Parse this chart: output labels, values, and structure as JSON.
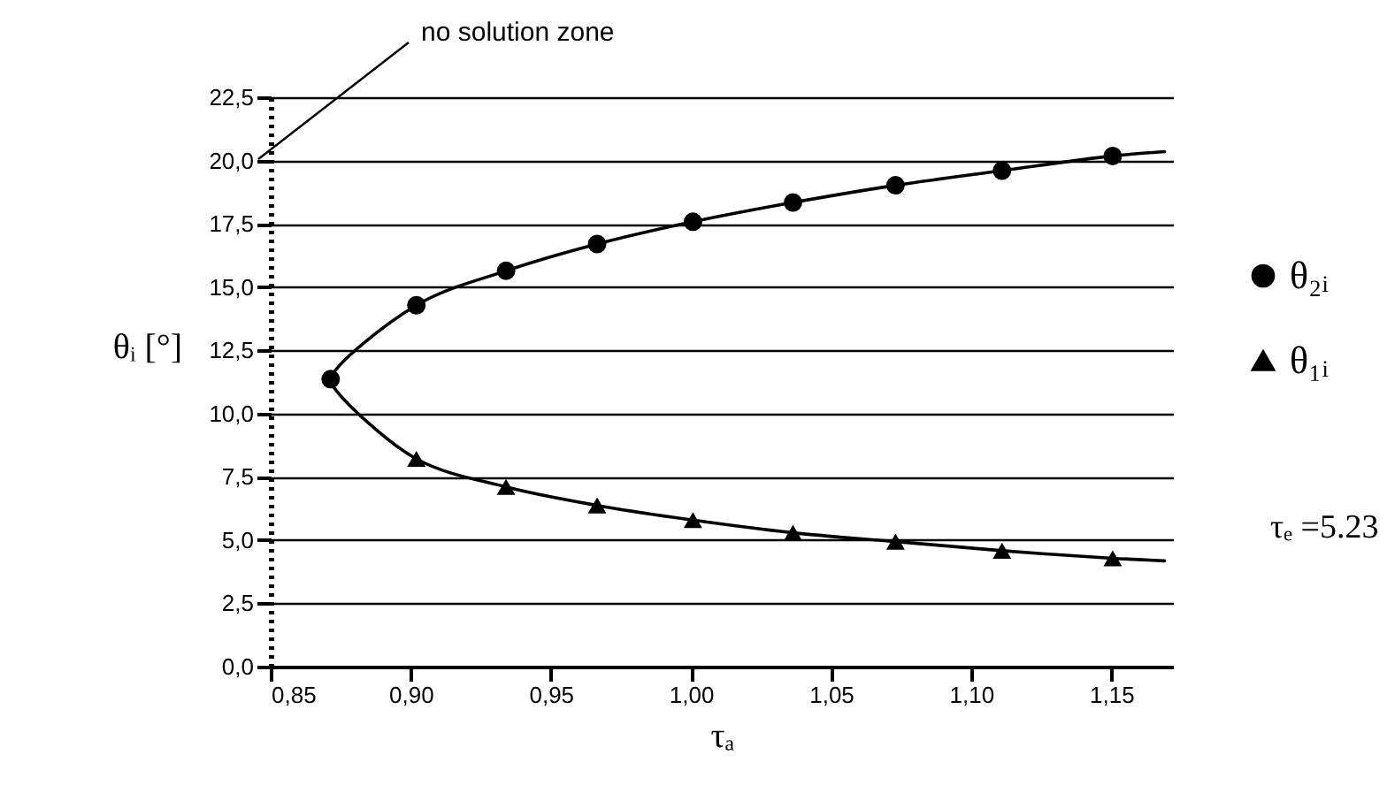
{
  "chart_data": {
    "type": "scatter",
    "xlabel": "τₐ",
    "ylabel": "θᵢ [°]",
    "xlim": [
      0.85,
      1.172
    ],
    "ylim": [
      0,
      22.5
    ],
    "xticks": [
      {
        "value": 0.85,
        "label": "0,85"
      },
      {
        "value": 0.9,
        "label": "0,90"
      },
      {
        "value": 0.95,
        "label": "0,95"
      },
      {
        "value": 1.0,
        "label": "1,00"
      },
      {
        "value": 1.05,
        "label": "1,05"
      },
      {
        "value": 1.1,
        "label": "1,10"
      },
      {
        "value": 1.15,
        "label": "1,15"
      }
    ],
    "yticks": [
      {
        "value": 0,
        "label": "0,0"
      },
      {
        "value": 2.5,
        "label": "2,5"
      },
      {
        "value": 5,
        "label": "5,0"
      },
      {
        "value": 7.5,
        "label": "7,5"
      },
      {
        "value": 10,
        "label": "10,0"
      },
      {
        "value": 12.5,
        "label": "12,5"
      },
      {
        "value": 15,
        "label": "15,0"
      },
      {
        "value": 17.5,
        "label": "17,5"
      },
      {
        "value": 20,
        "label": "20,0"
      },
      {
        "value": 22.5,
        "label": "22,5"
      }
    ],
    "grid": "y",
    "legend": "right",
    "series": [
      {
        "type": "line",
        "color": "#000000",
        "x": [
          1.169,
          1.1505,
          1.111,
          1.073,
          1.0364,
          1.0007,
          0.9665,
          0.934,
          0.902,
          0.8735,
          0.8714,
          0.902,
          0.934,
          0.9665,
          1.0007,
          1.0364,
          1.073,
          1.111,
          1.1505,
          1.169
        ],
        "values": [
          4.18,
          4.28,
          4.58,
          4.94,
          5.29,
          5.79,
          6.37,
          7.1,
          8.21,
          10.9,
          11.36,
          14.28,
          15.64,
          16.7,
          17.58,
          18.34,
          19.02,
          19.6,
          20.18,
          20.35
        ]
      },
      {
        "name": "θ₂ᵢ",
        "color": "#000000",
        "marker": "circle",
        "x": [
          0.8714,
          0.902,
          0.934,
          0.9665,
          1.0007,
          1.0364,
          1.073,
          1.111,
          1.1505
        ],
        "values": [
          11.36,
          14.28,
          15.64,
          16.7,
          17.58,
          18.34,
          19.02,
          19.6,
          20.18
        ]
      },
      {
        "name": "θ₁ᵢ",
        "color": "#000000",
        "marker": "triangle",
        "x": [
          0.902,
          0.934,
          0.9665,
          1.0007,
          1.0364,
          1.073,
          1.111,
          1.1505
        ],
        "values": [
          8.21,
          7.1,
          6.37,
          5.79,
          5.29,
          4.94,
          4.58,
          4.28
        ]
      }
    ],
    "annotations": [
      "no solution zone",
      "τₑ =5.23"
    ]
  }
}
